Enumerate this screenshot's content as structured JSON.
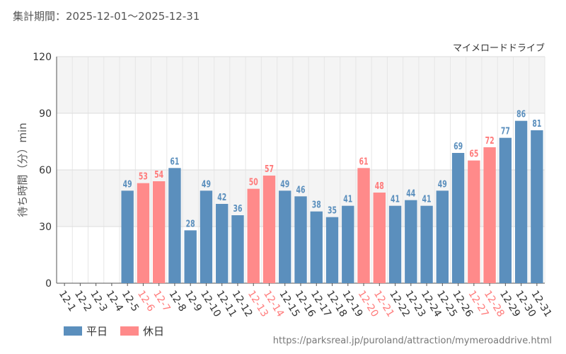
{
  "period_label": "集計期間：2025-12-01〜2025-12-31",
  "source_url": "https://parksreal.jp/puroland/attraction/mymeroaddrive.html",
  "colors": {
    "weekday": "#5b8fbd",
    "holiday": "#ff8a8a",
    "holiday_label": "#ff7a7a"
  },
  "chart_data": {
    "type": "bar",
    "title": "マイメロードドライブ",
    "ylabel": "待ち時間（分）min",
    "xlabel": "",
    "ylim": [
      0,
      120
    ],
    "yticks": [
      0,
      30,
      60,
      90,
      120
    ],
    "grid": true,
    "legend": [
      {
        "name": "平日",
        "key": "weekday"
      },
      {
        "name": "休日",
        "key": "holiday"
      }
    ],
    "categories": [
      "12-1",
      "12-2",
      "12-3",
      "12-4",
      "12-5",
      "12-6",
      "12-7",
      "12-8",
      "12-9",
      "12-10",
      "12-11",
      "12-12",
      "12-13",
      "12-14",
      "12-15",
      "12-16",
      "12-17",
      "12-18",
      "12-19",
      "12-20",
      "12-21",
      "12-22",
      "12-23",
      "12-24",
      "12-25",
      "12-26",
      "12-27",
      "12-28",
      "12-29",
      "12-30",
      "12-31"
    ],
    "values": [
      null,
      null,
      null,
      null,
      49,
      53,
      54,
      61,
      28,
      49,
      42,
      36,
      50,
      57,
      49,
      46,
      38,
      35,
      41,
      61,
      48,
      41,
      44,
      41,
      49,
      69,
      65,
      72,
      77,
      86,
      81
    ],
    "holiday": [
      false,
      false,
      false,
      false,
      false,
      true,
      true,
      false,
      false,
      false,
      false,
      false,
      true,
      true,
      false,
      false,
      false,
      false,
      false,
      true,
      true,
      false,
      false,
      false,
      false,
      false,
      true,
      true,
      false,
      false,
      false
    ]
  }
}
